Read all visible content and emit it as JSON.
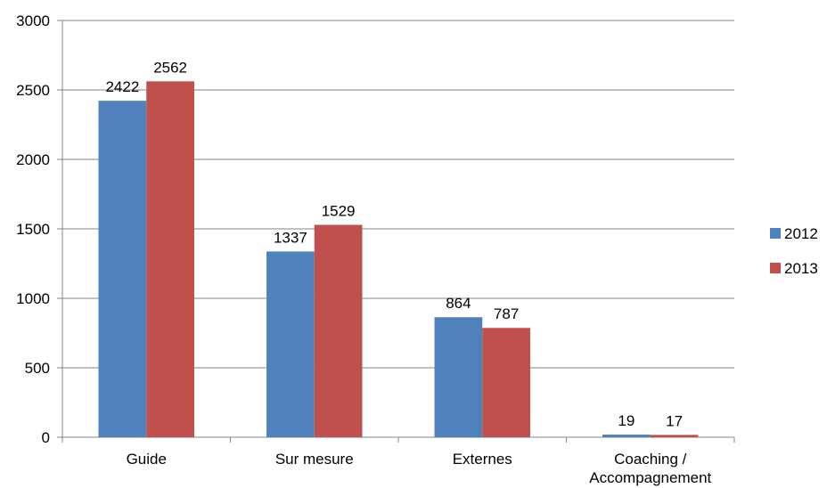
{
  "chart_data": {
    "type": "bar",
    "categories": [
      "Guide",
      "Sur mesure",
      "Externes",
      "Coaching / Accompagnement"
    ],
    "category_lines": [
      [
        "Guide"
      ],
      [
        "Sur mesure"
      ],
      [
        "Externes"
      ],
      [
        "Coaching /",
        "Accompagnement"
      ]
    ],
    "series": [
      {
        "name": "2012",
        "values": [
          2422,
          1337,
          864,
          19
        ],
        "color": "#4F81BD"
      },
      {
        "name": "2013",
        "values": [
          2562,
          1529,
          787,
          17
        ],
        "color": "#C0504D"
      }
    ],
    "ylim": [
      0,
      3000
    ],
    "yticks": [
      0,
      500,
      1000,
      1500,
      2000,
      2500,
      3000
    ],
    "grid": true,
    "legend": "right",
    "data_labels": true,
    "title": "",
    "xlabel": "",
    "ylabel": ""
  }
}
